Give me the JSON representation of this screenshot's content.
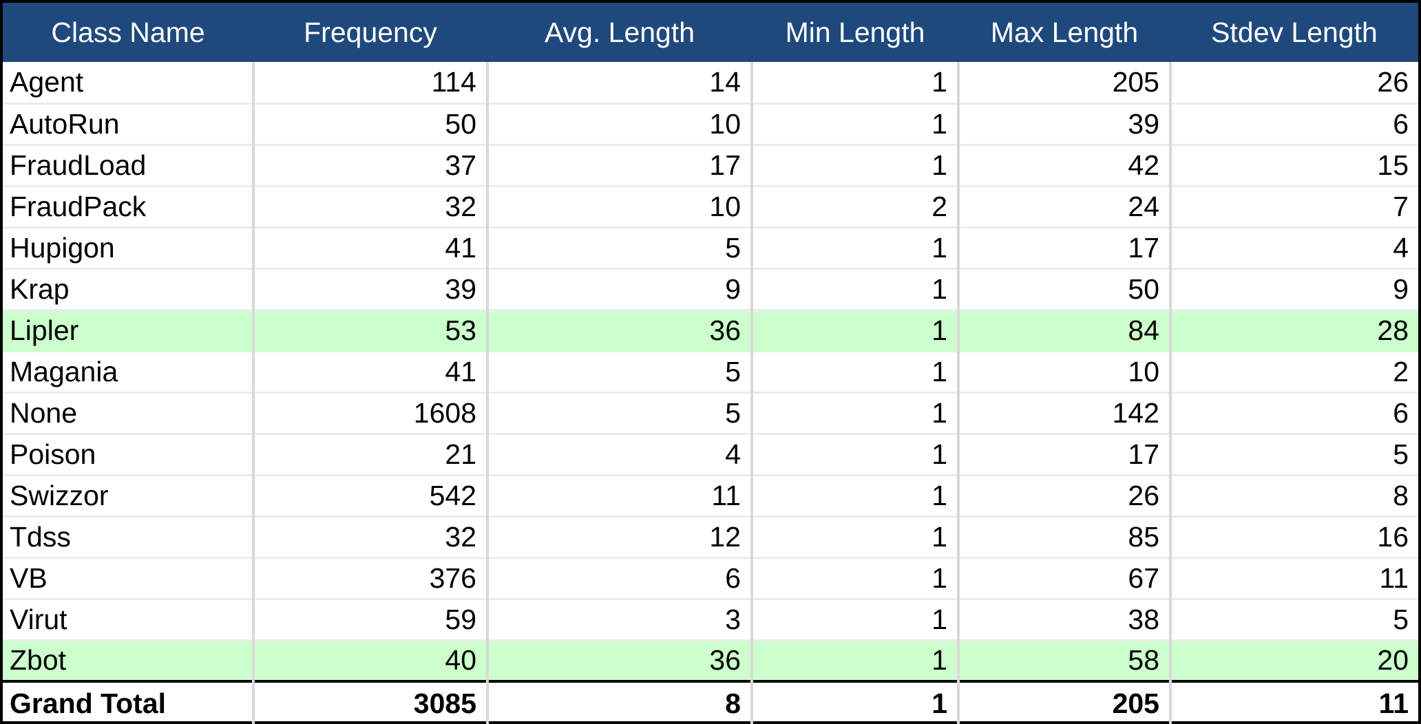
{
  "table": {
    "columns": [
      "Class Name",
      "Frequency",
      "Avg. Length",
      "Min Length",
      "Max Length",
      "Stdev Length"
    ],
    "rows": [
      {
        "name": "Agent",
        "frequency": "114",
        "avg": "14",
        "min": "1",
        "max": "205",
        "stdev": "26"
      },
      {
        "name": "AutoRun",
        "frequency": "50",
        "avg": "10",
        "min": "1",
        "max": "39",
        "stdev": "6"
      },
      {
        "name": "FraudLoad",
        "frequency": "37",
        "avg": "17",
        "min": "1",
        "max": "42",
        "stdev": "15"
      },
      {
        "name": "FraudPack",
        "frequency": "32",
        "avg": "10",
        "min": "2",
        "max": "24",
        "stdev": "7"
      },
      {
        "name": "Hupigon",
        "frequency": "41",
        "avg": "5",
        "min": "1",
        "max": "17",
        "stdev": "4"
      },
      {
        "name": "Krap",
        "frequency": "39",
        "avg": "9",
        "min": "1",
        "max": "50",
        "stdev": "9"
      },
      {
        "name": "Lipler",
        "frequency": "53",
        "avg": "36",
        "min": "1",
        "max": "84",
        "stdev": "28",
        "highlight": true
      },
      {
        "name": "Magania",
        "frequency": "41",
        "avg": "5",
        "min": "1",
        "max": "10",
        "stdev": "2"
      },
      {
        "name": "None",
        "frequency": "1608",
        "avg": "5",
        "min": "1",
        "max": "142",
        "stdev": "6"
      },
      {
        "name": "Poison",
        "frequency": "21",
        "avg": "4",
        "min": "1",
        "max": "17",
        "stdev": "5"
      },
      {
        "name": "Swizzor",
        "frequency": "542",
        "avg": "11",
        "min": "1",
        "max": "26",
        "stdev": "8"
      },
      {
        "name": "Tdss",
        "frequency": "32",
        "avg": "12",
        "min": "1",
        "max": "85",
        "stdev": "16"
      },
      {
        "name": "VB",
        "frequency": "376",
        "avg": "6",
        "min": "1",
        "max": "67",
        "stdev": "11"
      },
      {
        "name": "Virut",
        "frequency": "59",
        "avg": "3",
        "min": "1",
        "max": "38",
        "stdev": "5"
      },
      {
        "name": "Zbot",
        "frequency": "40",
        "avg": "36",
        "min": "1",
        "max": "58",
        "stdev": "20",
        "highlight": true
      }
    ],
    "total": {
      "name": "Grand Total",
      "frequency": "3085",
      "avg": "8",
      "min": "1",
      "max": "205",
      "stdev": "11"
    }
  },
  "colors": {
    "header_bg": "#1f497d",
    "header_text": "#ffffff",
    "highlight_bg": "#ccffcc"
  }
}
